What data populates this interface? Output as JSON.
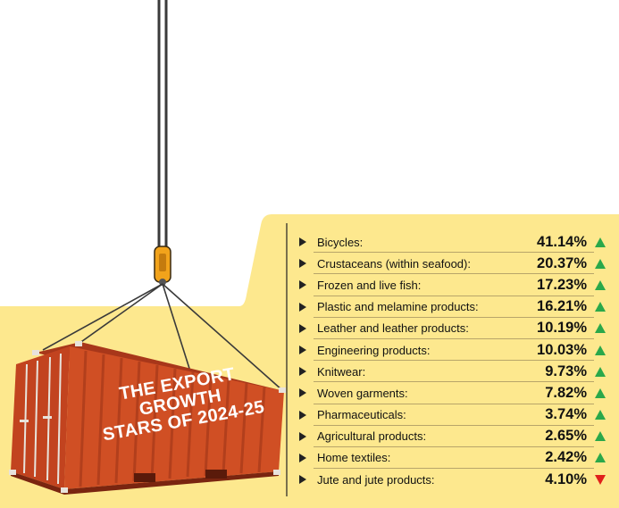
{
  "title": "THE EXPORT\nGROWTH\nSTARS OF 2024-25",
  "colors": {
    "panel": "#fde88e",
    "container": "#d04f24",
    "up_arrow": "#2aa84a",
    "down_arrow": "#e0201b"
  },
  "items": [
    {
      "label": "Bicycles:",
      "value": "41.14%",
      "trend": "up"
    },
    {
      "label": "Crustaceans (within seafood):",
      "value": "20.37%",
      "trend": "up"
    },
    {
      "label": "Frozen and live fish:",
      "value": "17.23%",
      "trend": "up"
    },
    {
      "label": "Plastic and melamine products:",
      "value": "16.21%",
      "trend": "up"
    },
    {
      "label": "Leather and leather products:",
      "value": "10.19%",
      "trend": "up"
    },
    {
      "label": "Engineering products:",
      "value": "10.03%",
      "trend": "up"
    },
    {
      "label": "Knitwear:",
      "value": "9.73%",
      "trend": "up"
    },
    {
      "label": "Woven garments:",
      "value": "7.82%",
      "trend": "up"
    },
    {
      "label": "Pharmaceuticals:",
      "value": "3.74%",
      "trend": "up"
    },
    {
      "label": "Agricultural products:",
      "value": "2.65%",
      "trend": "up"
    },
    {
      "label": "Home textiles:",
      "value": "2.42%",
      "trend": "up"
    },
    {
      "label": "Jute and jute products:",
      "value": "4.10%",
      "trend": "down"
    }
  ]
}
